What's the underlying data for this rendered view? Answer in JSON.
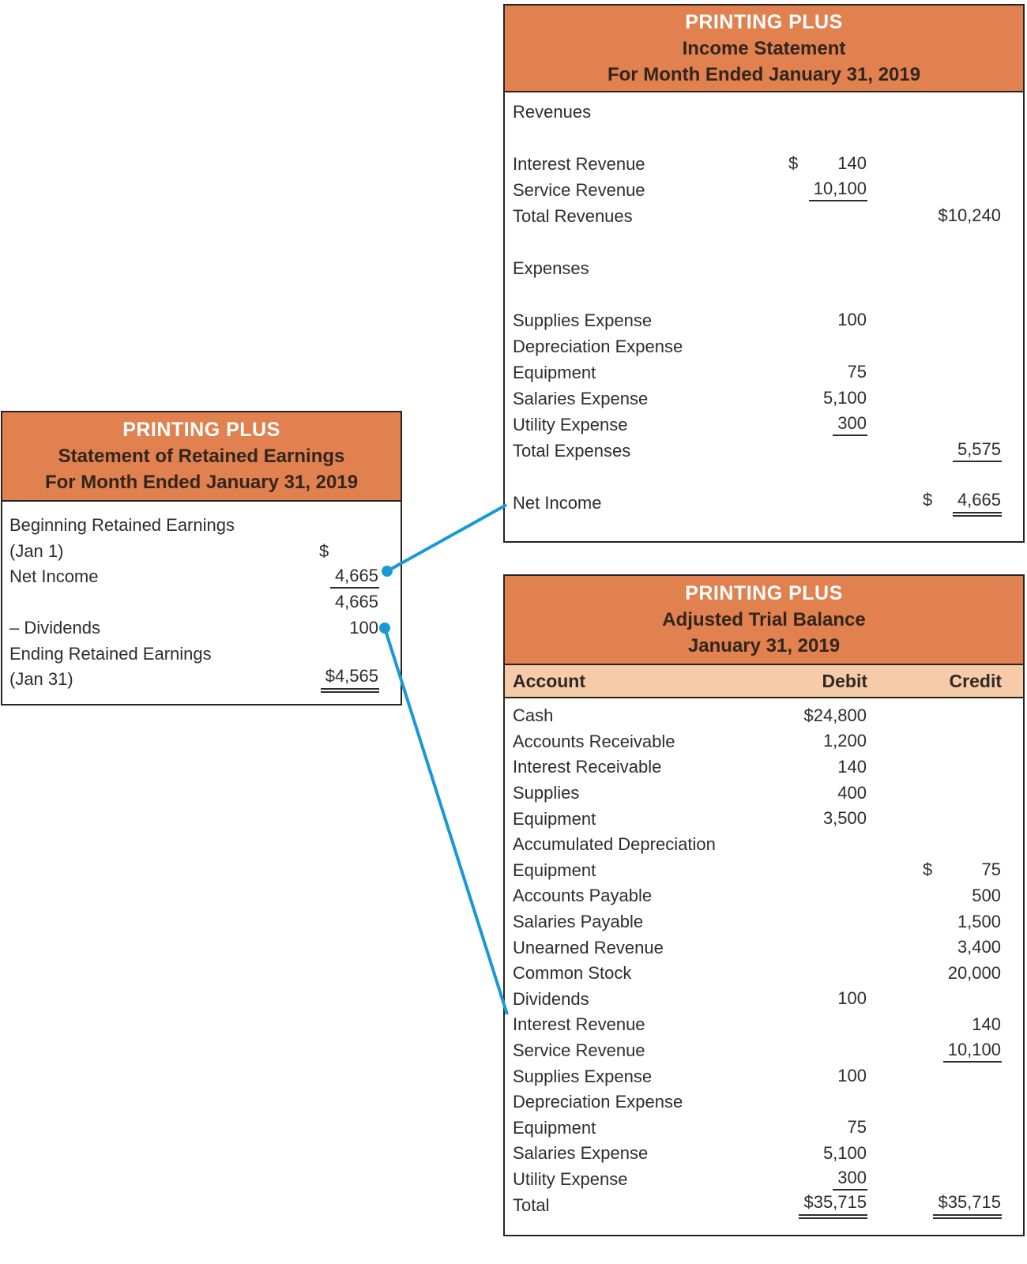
{
  "colors": {
    "header_bg": "#e0814f",
    "column_header_bg": "#f7cba8",
    "header_company_text": "#ffffff",
    "header_dark_text": "#33251d",
    "body_text": "#2d2d2d",
    "border": "#262220",
    "connector_blue": "#1899d6"
  },
  "income_statement": {
    "company": "PRINTING PLUS",
    "statement_name": "Income Statement",
    "period": "For Month Ended January 31, 2019",
    "rows": [
      {
        "label": "Revenues"
      },
      {
        "label": ""
      },
      {
        "label": "Interest Revenue",
        "d_cur": "$",
        "d_val": "140"
      },
      {
        "label": "Service Revenue",
        "d_val": "10,100",
        "d_u": "single"
      },
      {
        "label": "Total Revenues",
        "c_val": "$10,240"
      },
      {
        "label": ""
      },
      {
        "label": "Expenses"
      },
      {
        "label": ""
      },
      {
        "label": "Supplies Expense",
        "d_val": "100"
      },
      {
        "label": "Depreciation Expense"
      },
      {
        "label": "Equipment",
        "d_val": "75"
      },
      {
        "label": "Salaries Expense",
        "d_val": "5,100"
      },
      {
        "label": "Utility Expense",
        "d_val": "300",
        "d_u": "single"
      },
      {
        "label": "Total Expenses",
        "c_val": "5,575",
        "c_u": "single"
      },
      {
        "label": ""
      },
      {
        "label": "Net Income",
        "c_cur": "$",
        "c_val": "4,665",
        "c_u": "double"
      }
    ]
  },
  "retained_earnings": {
    "company": "PRINTING PLUS",
    "statement_name": "Statement of Retained Earnings",
    "period": "For Month Ended January 31, 2019",
    "rows": [
      {
        "label": "Beginning Retained Earnings"
      },
      {
        "label": "(Jan 1)",
        "d_cur": "$"
      },
      {
        "label": "Net Income",
        "d_val": "4,665",
        "d_u": "single"
      },
      {
        "label": "",
        "d_val": "4,665"
      },
      {
        "label": "– Dividends",
        "d_val": "100"
      },
      {
        "label": "Ending Retained Earnings"
      },
      {
        "label": "(Jan 31)",
        "d_val": "$4,565",
        "d_u": "double"
      }
    ]
  },
  "trial_balance": {
    "company": "PRINTING PLUS",
    "statement_name": "Adjusted Trial Balance",
    "period": "January 31, 2019",
    "columns": {
      "account": "Account",
      "debit": "Debit",
      "credit": "Credit"
    },
    "rows": [
      {
        "label": "Cash",
        "d_val": "$24,800"
      },
      {
        "label": "Accounts Receivable",
        "d_val": "1,200"
      },
      {
        "label": "Interest Receivable",
        "d_val": "140"
      },
      {
        "label": "Supplies",
        "d_val": "400"
      },
      {
        "label": "Equipment",
        "d_val": "3,500"
      },
      {
        "label": "Accumulated Depreciation"
      },
      {
        "label": "Equipment",
        "c_cur": "$",
        "c_val": "75"
      },
      {
        "label": "Accounts Payable",
        "c_val": "500"
      },
      {
        "label": "Salaries Payable",
        "c_val": "1,500"
      },
      {
        "label": "Unearned Revenue",
        "c_val": "3,400"
      },
      {
        "label": "Common Stock",
        "c_val": "20,000"
      },
      {
        "label": "Dividends",
        "d_val": "100"
      },
      {
        "label": "Interest Revenue",
        "c_val": "140"
      },
      {
        "label": "Service Revenue",
        "c_val": "10,100",
        "c_u": "single"
      },
      {
        "label": "Supplies Expense",
        "d_val": "100"
      },
      {
        "label": "Depreciation Expense"
      },
      {
        "label": "Equipment",
        "d_val": "75"
      },
      {
        "label": "Salaries Expense",
        "d_val": "5,100"
      },
      {
        "label": "Utility Expense",
        "d_val": "300",
        "d_u": "single"
      },
      {
        "label": "Total",
        "d_val": "$35,715",
        "d_u": "double",
        "c_val": "$35,715",
        "c_u": "double"
      }
    ]
  }
}
